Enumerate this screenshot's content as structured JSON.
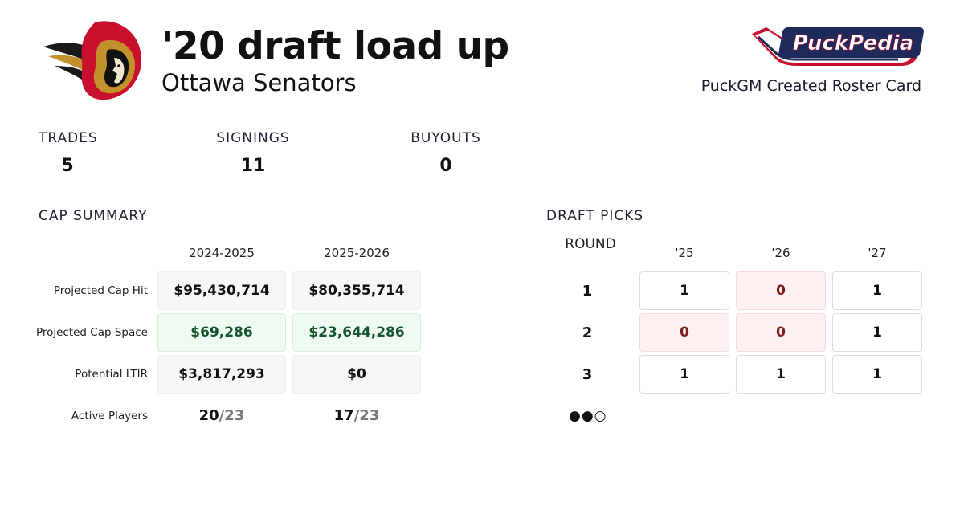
{
  "header": {
    "title": "'20 draft load up",
    "team_name": "Ottawa Senators",
    "team_logo_icon": "senators-logo-icon",
    "brand_logo_icon": "puckpedia-logo-icon",
    "brand_logo_text": "PuckPedia",
    "brand_caption": "PuckGM Created Roster Card"
  },
  "stats": [
    {
      "label": "TRADES",
      "value": "5"
    },
    {
      "label": "SIGNINGS",
      "value": "11"
    },
    {
      "label": "BUYOUTS",
      "value": "0"
    }
  ],
  "cap_summary": {
    "title": "CAP SUMMARY",
    "seasons": [
      "2024-2025",
      "2025-2026"
    ],
    "rows": [
      {
        "label": "Projected Cap Hit",
        "values": [
          "$95,430,714",
          "$80,355,714"
        ]
      },
      {
        "label": "Projected Cap Space",
        "values": [
          "$69,286",
          "$23,644,286"
        ]
      },
      {
        "label": "Potential LTIR",
        "values": [
          "$3,817,293",
          "$0"
        ]
      }
    ],
    "active_players": {
      "label": "Active Players",
      "values": [
        {
          "count": "20",
          "max": "/23"
        },
        {
          "count": "17",
          "max": "/23"
        }
      ]
    }
  },
  "draft_picks": {
    "title": "DRAFT PICKS",
    "round_label": "ROUND",
    "years": [
      "'25",
      "'26",
      "'27"
    ],
    "rounds": [
      {
        "round": "1",
        "picks": [
          "1",
          "0",
          "1"
        ]
      },
      {
        "round": "2",
        "picks": [
          "0",
          "0",
          "1"
        ]
      },
      {
        "round": "3",
        "picks": [
          "1",
          "1",
          "1"
        ]
      }
    ],
    "pagination_dots": "●●○"
  },
  "colors": {
    "senators_red": "#c8102e",
    "senators_gold": "#c2912c",
    "puckpedia_navy": "#1e2a5a",
    "cap_space_green": "#14532d",
    "zero_pick_red": "#7f1d1d"
  }
}
